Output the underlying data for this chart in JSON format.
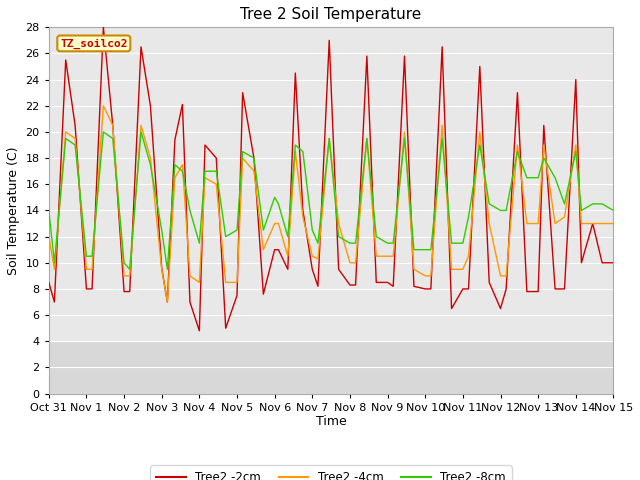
{
  "title": "Tree 2 Soil Temperature",
  "xlabel": "Time",
  "ylabel": "Soil Temperature (C)",
  "ylim": [
    0,
    28
  ],
  "xlim": [
    0,
    15
  ],
  "yticks": [
    0,
    2,
    4,
    6,
    8,
    10,
    12,
    14,
    16,
    18,
    20,
    22,
    24,
    26,
    28
  ],
  "xtick_labels": [
    "Oct 31",
    "Nov 1",
    "Nov 2",
    "Nov 3",
    "Nov 4",
    "Nov 5",
    "Nov 6",
    "Nov 7",
    "Nov 8",
    "Nov 9",
    "Nov 10",
    "Nov 11",
    "Nov 12",
    "Nov 13",
    "Nov 14",
    "Nov 15"
  ],
  "xtick_positions": [
    0,
    1,
    2,
    3,
    4,
    5,
    6,
    7,
    8,
    9,
    10,
    11,
    12,
    13,
    14,
    15
  ],
  "legend_label": "TZ_soilco2",
  "series": {
    "2cm": {
      "color": "#cc0000",
      "label": "Tree2 -2cm",
      "x": [
        0.0,
        0.15,
        0.45,
        0.7,
        1.0,
        1.15,
        1.45,
        1.7,
        2.0,
        2.15,
        2.45,
        2.7,
        3.0,
        3.15,
        3.35,
        3.55,
        3.75,
        4.0,
        4.15,
        4.45,
        4.7,
        5.0,
        5.15,
        5.45,
        5.7,
        6.0,
        6.1,
        6.35,
        6.55,
        6.75,
        7.0,
        7.15,
        7.45,
        7.7,
        8.0,
        8.15,
        8.45,
        8.7,
        9.0,
        9.15,
        9.45,
        9.7,
        10.0,
        10.15,
        10.45,
        10.7,
        11.0,
        11.15,
        11.45,
        11.7,
        12.0,
        12.15,
        12.45,
        12.7,
        13.0,
        13.15,
        13.45,
        13.7,
        14.0,
        14.15,
        14.45,
        14.7,
        15.0
      ],
      "y": [
        8.5,
        7.0,
        25.5,
        20.5,
        8.0,
        8.0,
        28.0,
        20.5,
        7.8,
        7.8,
        26.5,
        22.0,
        9.6,
        7.0,
        19.4,
        22.1,
        7.0,
        4.8,
        19.0,
        18.0,
        5.0,
        7.5,
        23.0,
        18.0,
        7.6,
        11.0,
        11.0,
        9.5,
        24.5,
        14.0,
        9.5,
        8.2,
        27.0,
        9.5,
        8.3,
        8.3,
        25.8,
        8.5,
        8.5,
        8.2,
        25.8,
        8.2,
        8.0,
        8.0,
        26.5,
        6.5,
        8.0,
        8.0,
        25.0,
        8.5,
        6.5,
        8.0,
        23.0,
        7.8,
        7.8,
        20.5,
        8.0,
        8.0,
        24.0,
        10.0,
        13.0,
        10.0,
        10.0
      ]
    },
    "4cm": {
      "color": "#ff9900",
      "label": "Tree2 -4cm",
      "x": [
        0.0,
        0.15,
        0.45,
        0.7,
        1.0,
        1.15,
        1.45,
        1.7,
        2.0,
        2.15,
        2.45,
        2.7,
        3.0,
        3.15,
        3.35,
        3.55,
        3.75,
        4.0,
        4.15,
        4.45,
        4.7,
        5.0,
        5.15,
        5.45,
        5.7,
        6.0,
        6.1,
        6.35,
        6.55,
        6.75,
        7.0,
        7.15,
        7.45,
        7.7,
        8.0,
        8.15,
        8.45,
        8.7,
        9.0,
        9.15,
        9.45,
        9.7,
        10.0,
        10.15,
        10.45,
        10.7,
        11.0,
        11.15,
        11.45,
        11.7,
        12.0,
        12.15,
        12.45,
        12.7,
        13.0,
        13.15,
        13.45,
        13.7,
        14.0,
        14.15,
        14.45,
        14.7,
        15.0
      ],
      "y": [
        12.0,
        9.5,
        20.0,
        19.5,
        9.5,
        9.5,
        22.0,
        20.5,
        9.0,
        9.0,
        20.5,
        18.0,
        9.5,
        7.0,
        16.5,
        17.5,
        9.0,
        8.5,
        16.5,
        16.0,
        8.5,
        8.5,
        18.0,
        17.0,
        11.0,
        13.0,
        13.0,
        10.5,
        18.5,
        13.5,
        10.5,
        10.3,
        19.5,
        13.0,
        10.0,
        10.0,
        19.5,
        10.5,
        10.5,
        10.5,
        20.0,
        9.5,
        9.0,
        9.0,
        20.5,
        9.5,
        9.5,
        10.5,
        20.0,
        13.0,
        9.0,
        9.0,
        19.0,
        13.0,
        13.0,
        19.0,
        13.0,
        13.5,
        19.0,
        13.0,
        13.0,
        13.0,
        13.0
      ]
    },
    "8cm": {
      "color": "#33cc00",
      "label": "Tree2 -8cm",
      "x": [
        0.0,
        0.15,
        0.45,
        0.7,
        1.0,
        1.15,
        1.45,
        1.7,
        2.0,
        2.15,
        2.45,
        2.7,
        3.0,
        3.15,
        3.35,
        3.55,
        3.75,
        4.0,
        4.15,
        4.45,
        4.7,
        5.0,
        5.15,
        5.45,
        5.7,
        6.0,
        6.1,
        6.35,
        6.55,
        6.75,
        7.0,
        7.15,
        7.45,
        7.7,
        8.0,
        8.15,
        8.45,
        8.7,
        9.0,
        9.15,
        9.45,
        9.7,
        10.0,
        10.15,
        10.45,
        10.7,
        11.0,
        11.15,
        11.45,
        11.7,
        12.0,
        12.15,
        12.45,
        12.7,
        13.0,
        13.15,
        13.45,
        13.7,
        14.0,
        14.15,
        14.45,
        14.7,
        15.0
      ],
      "y": [
        14.0,
        10.0,
        19.5,
        19.0,
        10.5,
        10.5,
        20.0,
        19.5,
        10.0,
        9.5,
        20.0,
        17.5,
        12.5,
        9.5,
        17.5,
        17.0,
        14.0,
        11.5,
        17.0,
        17.0,
        12.0,
        12.5,
        18.5,
        18.0,
        12.5,
        15.0,
        14.5,
        12.0,
        19.0,
        18.5,
        12.5,
        11.5,
        19.5,
        12.0,
        11.5,
        11.5,
        19.5,
        12.0,
        11.5,
        11.5,
        19.5,
        11.0,
        11.0,
        11.0,
        19.5,
        11.5,
        11.5,
        13.5,
        19.0,
        14.5,
        14.0,
        14.0,
        18.5,
        16.5,
        16.5,
        18.0,
        16.5,
        14.5,
        18.5,
        14.0,
        14.5,
        14.5,
        14.0
      ]
    }
  },
  "plot_bg_color": "#e8e8e8",
  "shaded_bg_color": "#d8d8d8",
  "grid_color": "#ffffff",
  "fig_bg_color": "#ffffff",
  "title_fontsize": 11,
  "axis_label_fontsize": 9,
  "tick_fontsize": 8
}
